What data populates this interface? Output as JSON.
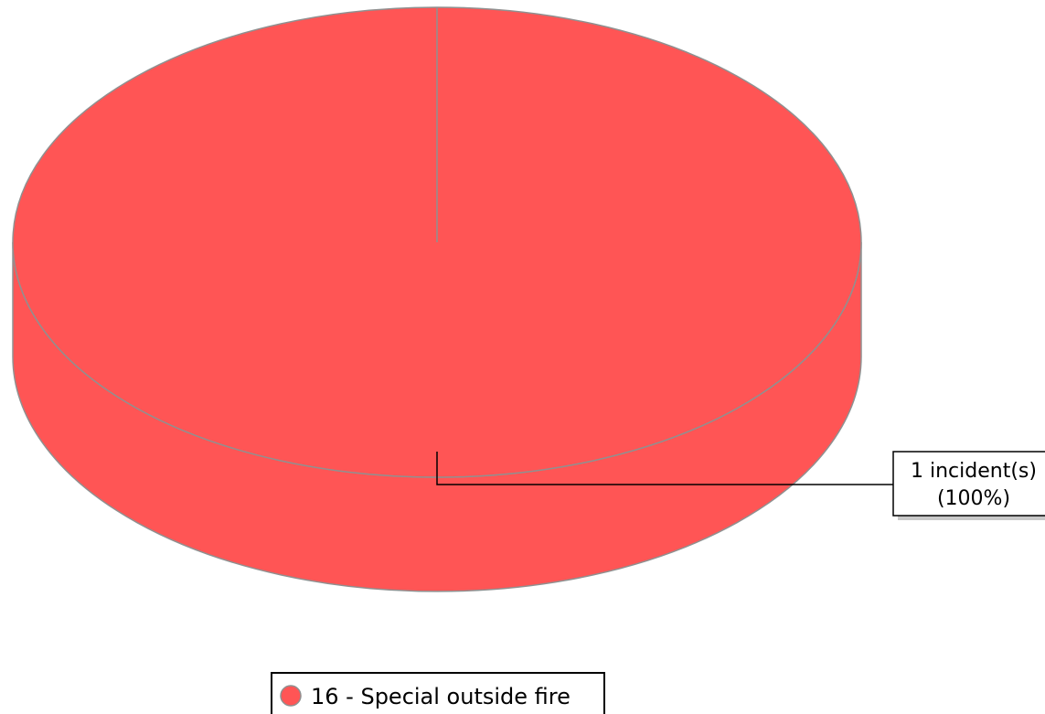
{
  "chart_data": {
    "type": "pie",
    "style": "3d",
    "series": [
      {
        "name": "16 - Special outside fire",
        "value": 1,
        "percent": 100,
        "color": "#FF5555",
        "data_label": "1 incident(s)",
        "data_label_percent": "(100%)"
      }
    ],
    "legend": {
      "position": "bottom-center"
    }
  }
}
